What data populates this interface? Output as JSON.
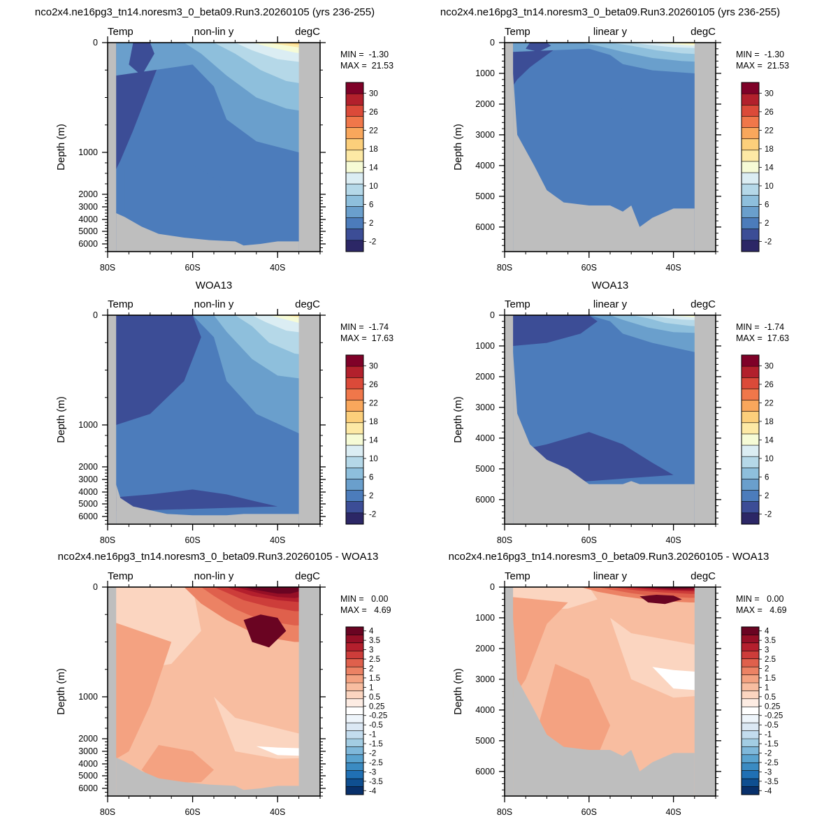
{
  "row_titles": [
    "nco2x4.ne16pg3_tn14.noresm3_0_beta09.Run3.20260105 (yrs 236-255)",
    "nco2x4.ne16pg3_tn14.noresm3_0_beta09.Run3.20260105 (yrs 236-255)",
    "WOA13",
    "WOA13",
    "nco2x4.ne16pg3_tn14.noresm3_0_beta09.Run3.20260105 - WOA13",
    "nco2x4.ne16pg3_tn14.noresm3_0_beta09.Run3.20260105 - WOA13"
  ],
  "colors": {
    "land": "#bebebe",
    "temp_levels": [
      "#2c2766",
      "#3c4d96",
      "#4c7cbb",
      "#6a9fcc",
      "#8ebfdc",
      "#b5d8e8",
      "#dbedf3",
      "#f6fbd6",
      "#fde9a5",
      "#fccf7b",
      "#f9a75c",
      "#f0774a",
      "#db4a39",
      "#b2202c",
      "#7f0128"
    ],
    "diff_levels": [
      "#08306b",
      "#0f4f91",
      "#2070b4",
      "#3b8bc2",
      "#5aa3cf",
      "#7fb8da",
      "#a3cde3",
      "#c3dcee",
      "#dbe8f4",
      "#eef5fb",
      "#ffffff",
      "#fdece3",
      "#fbd5c0",
      "#f8bda0",
      "#f4a281",
      "#ec8264",
      "#df604c",
      "#cd3d3a",
      "#b41f2d",
      "#950f26",
      "#6a0422"
    ]
  },
  "chart_data": [
    {
      "type": "heatmap",
      "panel": "model-nonlinear",
      "title": "nco2x4.ne16pg3_tn14.noresm3_0_beta09.Run3.20260105 (yrs 236-255)",
      "left_label": "Temp",
      "center_label": "non-lin y",
      "right_label": "degC",
      "ylabel": "Depth (m)",
      "y_scale": "non-linear",
      "y_ticks": [
        "0",
        "1000",
        "2000",
        "3000",
        "4000",
        "5000",
        "6000"
      ],
      "x_ticks": [
        "80S",
        "60S",
        "40S"
      ],
      "min_label": "MIN =  -1.30",
      "max_label": "MAX =  21.53",
      "min": -1.3,
      "max": 21.53,
      "colorbar_labels": [
        "30",
        "26",
        "22",
        "18",
        "14",
        "10",
        "6",
        "2",
        "-2"
      ],
      "xlim": [
        "80S",
        "30S"
      ],
      "ylim": [
        0,
        6500
      ]
    },
    {
      "type": "heatmap",
      "panel": "model-linear",
      "title": "nco2x4.ne16pg3_tn14.noresm3_0_beta09.Run3.20260105 (yrs 236-255)",
      "left_label": "Temp",
      "center_label": "linear y",
      "right_label": "degC",
      "ylabel": "Depth (m)",
      "y_scale": "linear",
      "y_ticks": [
        "0",
        "1000",
        "2000",
        "3000",
        "4000",
        "5000",
        "6000"
      ],
      "x_ticks": [
        "80S",
        "60S",
        "40S"
      ],
      "min_label": "MIN =  -1.30",
      "max_label": "MAX =  21.53",
      "min": -1.3,
      "max": 21.53,
      "colorbar_labels": [
        "30",
        "26",
        "22",
        "18",
        "14",
        "10",
        "6",
        "2",
        "-2"
      ],
      "xlim": [
        "80S",
        "30S"
      ],
      "ylim": [
        0,
        6800
      ]
    },
    {
      "type": "heatmap",
      "panel": "obs-nonlinear",
      "title": "WOA13",
      "left_label": "Temp",
      "center_label": "non-lin y",
      "right_label": "degC",
      "ylabel": "Depth (m)",
      "y_scale": "non-linear",
      "y_ticks": [
        "0",
        "1000",
        "2000",
        "3000",
        "4000",
        "5000",
        "6000"
      ],
      "x_ticks": [
        "80S",
        "60S",
        "40S"
      ],
      "min_label": "MIN =  -1.74",
      "max_label": "MAX =  17.63",
      "min": -1.74,
      "max": 17.63,
      "colorbar_labels": [
        "30",
        "26",
        "22",
        "18",
        "14",
        "10",
        "6",
        "2",
        "-2"
      ],
      "xlim": [
        "80S",
        "30S"
      ],
      "ylim": [
        0,
        6500
      ]
    },
    {
      "type": "heatmap",
      "panel": "obs-linear",
      "title": "WOA13",
      "left_label": "Temp",
      "center_label": "linear y",
      "right_label": "degC",
      "ylabel": "Depth (m)",
      "y_scale": "linear",
      "y_ticks": [
        "0",
        "1000",
        "2000",
        "3000",
        "4000",
        "5000",
        "6000"
      ],
      "x_ticks": [
        "80S",
        "60S",
        "40S"
      ],
      "min_label": "MIN =  -1.74",
      "max_label": "MAX =  17.63",
      "min": -1.74,
      "max": 17.63,
      "colorbar_labels": [
        "30",
        "26",
        "22",
        "18",
        "14",
        "10",
        "6",
        "2",
        "-2"
      ],
      "xlim": [
        "80S",
        "30S"
      ],
      "ylim": [
        0,
        6800
      ]
    },
    {
      "type": "heatmap",
      "panel": "diff-nonlinear",
      "title": "nco2x4.ne16pg3_tn14.noresm3_0_beta09.Run3.20260105 - WOA13",
      "left_label": "Temp",
      "center_label": "non-lin y",
      "right_label": "degC",
      "ylabel": "Depth (m)",
      "y_scale": "non-linear",
      "y_ticks": [
        "0",
        "1000",
        "2000",
        "3000",
        "4000",
        "5000",
        "6000"
      ],
      "x_ticks": [
        "80S",
        "60S",
        "40S"
      ],
      "min_label": "MIN =   0.00",
      "max_label": "MAX =   4.69",
      "min": 0.0,
      "max": 4.69,
      "colorbar_labels": [
        "4",
        "3.5",
        "3",
        "2.5",
        "2",
        "1.5",
        "1",
        "0.5",
        "0.25",
        "-0.25",
        "-0.5",
        "-1",
        "-1.5",
        "-2",
        "-2.5",
        "-3",
        "-3.5",
        "-4"
      ],
      "xlim": [
        "80S",
        "30S"
      ],
      "ylim": [
        0,
        6500
      ]
    },
    {
      "type": "heatmap",
      "panel": "diff-linear",
      "title": "nco2x4.ne16pg3_tn14.noresm3_0_beta09.Run3.20260105 - WOA13",
      "left_label": "Temp",
      "center_label": "linear y",
      "right_label": "degC",
      "ylabel": "Depth (m)",
      "y_scale": "linear",
      "y_ticks": [
        "0",
        "1000",
        "2000",
        "3000",
        "4000",
        "5000",
        "6000"
      ],
      "x_ticks": [
        "80S",
        "60S",
        "40S"
      ],
      "min_label": "MIN =   0.00",
      "max_label": "MAX =   4.69",
      "min": 0.0,
      "max": 4.69,
      "colorbar_labels": [
        "4",
        "3.5",
        "3",
        "2.5",
        "2",
        "1.5",
        "1",
        "0.5",
        "0.25",
        "-0.25",
        "-0.5",
        "-1",
        "-1.5",
        "-2",
        "-2.5",
        "-3",
        "-3.5",
        "-4"
      ],
      "xlim": [
        "80S",
        "30S"
      ],
      "ylim": [
        0,
        6800
      ]
    }
  ]
}
